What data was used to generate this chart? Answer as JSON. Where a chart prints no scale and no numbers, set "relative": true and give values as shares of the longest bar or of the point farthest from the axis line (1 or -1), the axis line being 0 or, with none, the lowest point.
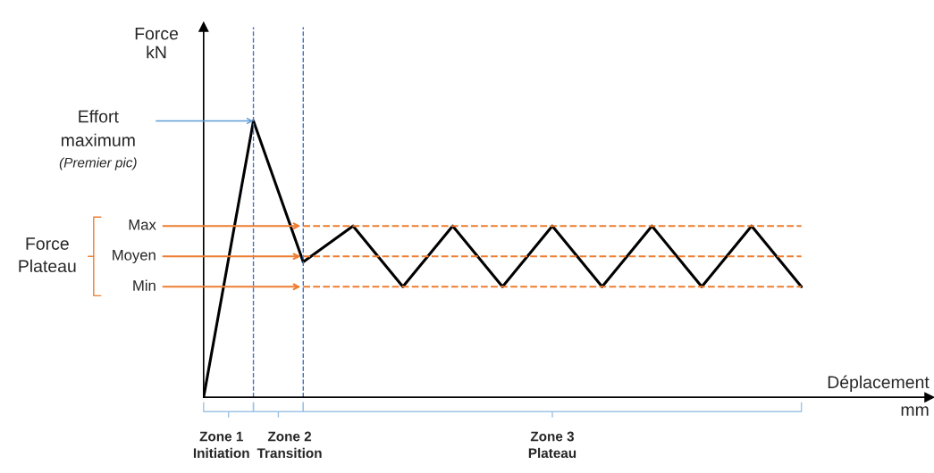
{
  "chart_data": {
    "type": "line",
    "relative": true,
    "xlabel": "Déplacement\nmm",
    "ylabel": "Force\nkN",
    "categories": [
      null,
      null,
      null,
      null,
      null,
      null,
      null,
      null,
      null,
      null,
      null,
      null,
      null
    ],
    "series": [
      {
        "color": "#000000",
        "values": [
          0,
          1,
          0.49,
          0.62,
          0.4,
          0.62,
          0.4,
          0.62,
          0.4,
          0.62,
          0.4,
          0.62,
          0.4
        ]
      }
    ],
    "ref_lines": [
      {
        "axis": "y",
        "value": 0.62,
        "label": "Max",
        "color": "#ed7d31",
        "line_style": "dashed"
      },
      {
        "axis": "y",
        "value": 0.51,
        "label": "Moyen",
        "color": "#ed7d31",
        "line_style": "dashed"
      },
      {
        "axis": "y",
        "value": 0.4,
        "label": "Min",
        "color": "#ed7d31",
        "line_style": "dashed"
      }
    ],
    "annotations": [
      "Effort\nmaximum",
      "(Premier pic)",
      "Force\nPlateau",
      "Zone 1\nInitiation",
      "Zone 2\nTransition",
      "Zone 3\nPlateau"
    ]
  }
}
